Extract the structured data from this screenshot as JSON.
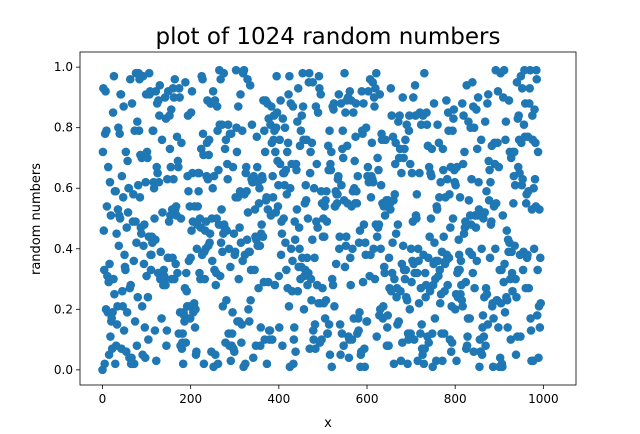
{
  "chart_data": {
    "type": "scatter",
    "title": "plot of 1024 random numbers",
    "xlabel": "x",
    "ylabel": "random numbers",
    "xlim": [
      -51,
      1074
    ],
    "ylim": [
      -0.05,
      1.05
    ],
    "xticks": [
      0,
      200,
      400,
      600,
      800,
      1000
    ],
    "xtick_labels": [
      "0",
      "200",
      "400",
      "600",
      "800",
      "1000"
    ],
    "yticks": [
      0.0,
      0.2,
      0.4,
      0.6,
      0.8,
      1.0
    ],
    "ytick_labels": [
      "0.0",
      "0.2",
      "0.4",
      "0.6",
      "0.8",
      "1.0"
    ],
    "grid": false,
    "legend": "none",
    "marker_color": "#1f77b4",
    "series": [
      {
        "n": 1024,
        "x_start": 0,
        "x_step": 1,
        "y": [
          0.0,
          0.72,
          0.93,
          0.46,
          0.33,
          0.02,
          0.78,
          0.92,
          0.2,
          0.79,
          0.54,
          0.31,
          0.19,
          0.67,
          0.29,
          0.05,
          0.35,
          0.62,
          0.11,
          0.51,
          0.16,
          0.17,
          0.07,
          0.19,
          0.85,
          0.3,
          0.97,
          0.25,
          0.59,
          0.02,
          0.59,
          0.08,
          0.45,
          0.15,
          0.21,
          0.53,
          0.8,
          0.41,
          0.51,
          0.78,
          0.5,
          0.91,
          0.91,
          0.07,
          0.64,
          0.26,
          0.21,
          0.57,
          0.87,
          0.13,
          0.38,
          0.34,
          0.33,
          0.72,
          0.06,
          0.47,
          0.19,
          0.69,
          0.52,
          0.6,
          0.6,
          0.04,
          0.27,
          0.96,
          0.28,
          0.02,
          0.04,
          0.88,
          0.02,
          0.49,
          0.58,
          0.36,
          0.02,
          0.79,
          0.16,
          0.49,
          0.98,
          0.42,
          0.08,
          0.82,
          0.24,
          0.61,
          0.98,
          0.79,
          0.96,
          0.57,
          0.71,
          0.47,
          0.45,
          0.7,
          0.21,
          0.05,
          0.97,
          0.41,
          0.35,
          0.48,
          0.14,
          0.04,
          0.62,
          0.91,
          0.31,
          0.72,
          0.7,
          0.24,
          0.1,
          0.44,
          0.98,
          0.91,
          0.92,
          0.38,
          0.33,
          0.38,
          0.44,
          0.42,
          0.79,
          0.79,
          0.62,
          0.6,
          0.5,
          0.13,
          0.43,
          0.92,
          0.03,
          0.67,
          0.88,
          0.65,
          0.32,
          0.89,
          0.62,
          0.84,
          0.94,
          0.3,
          0.39,
          0.31,
          0.17,
          0.76,
          0.52,
          0.3,
          0.28,
          0.33,
          0.31,
          0.3,
          0.9,
          0.28,
          0.83,
          0.08,
          0.13,
          0.63,
          0.37,
          0.92,
          0.37,
          0.49,
          0.84,
          0.73,
          0.51,
          0.67,
          0.86,
          0.3,
          0.53,
          0.37,
          0.93,
          0.63,
          0.9,
          0.3,
          0.96,
          0.53,
          0.35,
          0.54,
          0.51,
          0.77,
          0.32,
          0.69,
          0.67,
          0.12,
          0.93,
          0.9,
          0.19,
          0.08,
          0.5,
          0.75,
          0.07,
          0.09,
          0.12,
          0.02,
          0.19,
          0.18,
          0.16,
          0.27,
          0.95,
          0.09,
          0.32,
          0.26,
          0.21,
          0.64,
          0.84,
          0.59,
          0.36,
          0.21,
          0.54,
          0.17,
          0.37,
          0.85,
          0.46,
          0.92,
          0.65,
          0.49,
          0.19,
          0.21,
          0.22,
          0.54,
          0.14,
          0.2,
          0.05,
          0.06,
          0.4,
          0.48,
          0.54,
          0.65,
          0.59,
          0.65,
          0.32,
          0.5,
          0.3,
          0.47,
          0.73,
          0.97,
          0.38,
          0.96,
          0.78,
          0.71,
          0.02,
          0.39,
          0.3,
          0.46,
          0.4,
          0.49,
          0.64,
          0.75,
          0.89,
          0.63,
          0.41,
          0.71,
          0.76,
          0.42,
          0.45,
          0.88,
          0.88,
          0.06,
          0.5,
          0.36,
          0.6,
          0.92,
          0.01,
          0.64,
          0.33,
          0.89,
          0.05,
          0.28,
          0.32,
          0.5,
          0.87,
          0.79,
          0.02,
          0.66,
          0.48,
          0.99,
          0.81,
          0.31,
          0.96,
          0.42,
          0.53,
          0.81,
          0.39,
          0.21,
          0.45,
          0.98,
          0.48,
          0.47,
          0.73,
          0.09,
          0.76,
          0.23,
          0.46,
          0.68,
          0.63,
          0.81,
          0.12,
          0.4,
          0.08,
          0.78,
          0.34,
          0.03,
          0.78,
          0.08,
          0.12,
          0.19,
          0.67,
          0.07,
          0.45,
          0.06,
          0.38,
          0.39,
          0.57,
          0.99,
          0.8,
          0.72,
          0.16,
          0.57,
          0.87,
          0.3,
          0.16,
          0.47,
          0.59,
          0.91,
          0.42,
          0.09,
          0.15,
          0.79,
          0.36,
          0.98,
          0.01,
          0.99,
          0.58,
          0.38,
          0.02,
          0.65,
          0.67,
          0.59,
          0.43,
          0.96,
          0.52,
          0.2,
          0.39,
          0.16,
          0.39,
          0.94,
          0.23,
          0.33,
          0.63,
          0.81,
          0.62,
          0.62,
          0.04,
          0.64,
          0.63,
          0.33,
          0.53,
          0.44,
          0.08,
          0.43,
          0.77,
          0.67,
          0.41,
          0.62,
          0.27,
          0.55,
          0.6,
          0.41,
          0.08,
          0.14,
          0.45,
          0.48,
          0.64,
          0.63,
          0.44,
          0.89,
          0.29,
          0.79,
          0.1,
          0.72,
          0.89,
          0.56,
          0.57,
          0.02,
          0.88,
          0.53,
          0.29,
          0.83,
          0.13,
          0.1,
          0.13,
          0.81,
          0.51,
          0.87,
          0.75,
          0.1,
          0.64,
          0.57,
          0.76,
          0.84,
          0.79,
          0.28,
          0.72,
          0.52,
          0.8,
          0.97,
          0.85,
          0.69,
          0.54,
          0.61,
          0.31,
          0.14,
          0.76,
          0.68,
          0.89,
          0.38,
          0.49,
          0.45,
          0.08,
          0.83,
          0.65,
          0.5,
          0.65,
          0.61,
          0.8,
          0.42,
          0.66,
          0.33,
          0.58,
          0.72,
          0.27,
          0.75,
          0.91,
          0.21,
          0.97,
          0.01,
          0.6,
          0.88,
          0.4,
          0.68,
          0.26,
          0.36,
          0.87,
          0.02,
          0.1,
          0.14,
          0.49,
          0.43,
          0.06,
          0.68,
          0.66,
          0.53,
          0.82,
          0.26,
          0.93,
          0.34,
          0.47,
          0.4,
          0.74,
          0.3,
          0.79,
          0.34,
          0.84,
          0.37,
          0.98,
          0.87,
          0.76,
          0.2,
          0.31,
          0.55,
          0.33,
          0.61,
          0.56,
          0.76,
          0.37,
          0.28,
          0.5,
          0.32,
          0.95,
          0.98,
          0.07,
          0.65,
          0.72,
          0.3,
          0.23,
          0.75,
          0.43,
          0.95,
          0.13,
          0.1,
          0.6,
          0.37,
          0.15,
          0.07,
          0.87,
          0.49,
          0.68,
          0.28,
          0.47,
          0.85,
          0.22,
          0.97,
          0.93,
          0.09,
          0.22,
          0.91,
          0.59,
          0.1,
          0.55,
          0.27,
          0.44,
          0.5,
          0.22,
          0.44,
          0.54,
          0.17,
          0.56,
          0.23,
          0.59,
          0.49,
          0.12,
          0.12,
          0.74,
          0.66,
          0.15,
          0.79,
          0.05,
          0.68,
          0.66,
          0.72,
          0.01,
          0.3,
          0.87,
          0.28,
          0.86,
          0.88,
          0.21,
          0.54,
          0.54,
          0.59,
          0.35,
          0.58,
          0.55,
          0.58,
          0.63,
          0.64,
          0.91,
          0.4,
          0.44,
          0.15,
          0.05,
          0.88,
          0.61,
          0.12,
          0.73,
          0.79,
          0.7,
          0.08,
          0.56,
          0.98,
          0.34,
          0.85,
          0.41,
          0.44,
          0.89,
          0.74,
          0.55,
          0.9,
          0.11,
          0.04,
          0.1,
          0.92,
          0.37,
          0.28,
          0.89,
          0.54,
          0.1,
          0.4,
          0.59,
          0.85,
          0.17,
          0.6,
          0.69,
          0.55,
          0.77,
          0.88,
          0.59,
          0.55,
          0.12,
          0.64,
          0.17,
          0.13,
          0.42,
          0.19,
          0.46,
          0.01,
          0.05,
          0.06,
          0.92,
          0.79,
          0.78,
          0.29,
          0.88,
          0.48,
          0.07,
          0.01,
          0.42,
          0.38,
          0.8,
          0.16,
          0.16,
          0.64,
          0.67,
          0.92,
          0.62,
          0.63,
          0.31,
          0.96,
          0.38,
          0.57,
          0.64,
          0.75,
          0.63,
          0.95,
          0.62,
          0.4,
          0.9,
          0.87,
          0.3,
          0.93,
          0.48,
          0.98,
          0.11,
          0.44,
          0.7,
          0.47,
          0.66,
          0.48,
          0.18,
          0.91,
          0.2,
          0.4,
          0.61,
          0.78,
          0.76,
          0.55,
          0.17,
          0.21,
          0.54,
          0.34,
          0.32,
          0.51,
          0.76,
          0.54,
          0.56,
          0.08,
          0.14,
          0.18,
          0.56,
          0.08,
          0.37,
          0.27,
          0.55,
          0.53,
          0.93,
          0.26,
          0.84,
          0.32,
          0.42,
          0.77,
          0.56,
          0.02,
          0.3,
          0.58,
          0.68,
          0.75,
          0.45,
          0.24,
          0.27,
          0.15,
          0.48,
          0.82,
          0.16,
          0.7,
          0.84,
          0.73,
          0.26,
          0.03,
          0.65,
          0.35,
          0.09,
          0.9,
          0.41,
          0.7,
          0.33,
          0.73,
          0.3,
          0.76,
          0.33,
          0.24,
          0.81,
          0.23,
          0.02,
          0.12,
          0.1,
          0.79,
          0.84,
          0.2,
          0.68,
          0.12,
          0.4,
          0.29,
          0.65,
          0.36,
          0.49,
          0.9,
          0.35,
          0.1,
          0.32,
          0.94,
          0.84,
          0.51,
          0.5,
          0.58,
          0.32,
          0.03,
          0.4,
          0.36,
          0.22,
          0.65,
          0.85,
          0.12,
          0.27,
          0.81,
          0.15,
          0.07,
          0.05,
          0.84,
          0.38,
          0.02,
          0.98,
          0.07,
          0.32,
          0.24,
          0.28,
          0.85,
          0.81,
          0.11,
          0.74,
          0.37,
          0.09,
          0.67,
          0.44,
          0.26,
          0.65,
          0.5,
          0.64,
          0.73,
          0.12,
          0.01,
          0.28,
          0.35,
          0.88,
          0.42,
          0.17,
          0.3,
          0.36,
          0.03,
          0.54,
          0.53,
          0.81,
          0.36,
          0.31,
          0.75,
          0.57,
          0.33,
          0.22,
          0.62,
          0.25,
          0.12,
          0.39,
          0.03,
          0.73,
          0.66,
          0.44,
          0.12,
          0.26,
          0.35,
          0.57,
          0.36,
          0.89,
          0.38,
          0.63,
          0.28,
          0.85,
          0.79,
          0.37,
          0.58,
          0.1,
          0.47,
          0.67,
          0.06,
          0.21,
          0.09,
          0.79,
          0.5,
          0.83,
          0.86,
          0.66,
          0.62,
          0.2,
          0.61,
          0.25,
          0.03,
          0.67,
          0.32,
          0.24,
          0.33,
          0.43,
          0.38,
          0.33,
          0.57,
          0.25,
          0.36,
          0.28,
          0.23,
          0.88,
          0.21,
          0.68,
          0.84,
          0.45,
          0.72,
          0.47,
          0.49,
          0.29,
          0.07,
          0.94,
          0.08,
          0.11,
          0.17,
          0.82,
          0.56,
          0.39,
          0.17,
          0.51,
          0.8,
          0.48,
          0.63,
          0.38,
          0.95,
          0.32,
          0.87,
          0.06,
          0.8,
          0.27,
          0.51,
          0.51,
          0.47,
          0.86,
          0.36,
          0.73,
          0.51,
          0.9,
          0.62,
          0.53,
          0.01,
          0.1,
          0.06,
          0.06,
          0.76,
          0.4,
          0.05,
          0.14,
          0.18,
          0.5,
          0.11,
          0.24,
          0.52,
          0.82,
          0.08,
          0.27,
          0.59,
          0.25,
          0.88,
          0.15,
          0.91,
          0.69,
          0.56,
          0.66,
          0.37,
          0.62,
          0.48,
          0.49,
          0.74,
          0.21,
          0.22,
          0.01,
          0.17,
          0.54,
          0.75,
          0.68,
          0.4,
          0.99,
          0.55,
          0.23,
          0.23,
          0.75,
          0.92,
          0.14,
          0.67,
          0.01,
          0.33,
          0.04,
          0.98,
          0.22,
          0.33,
          0.02,
          0.01,
          0.51,
          0.9,
          0.29,
          0.99,
          0.35,
          0.19,
          0.76,
          0.82,
          0.24,
          0.46,
          0.23,
          0.14,
          0.43,
          0.39,
          0.89,
          0.42,
          0.72,
          0.3,
          0.1,
          0.7,
          0.39,
          0.32,
          0.26,
          0.72,
          0.55,
          0.64,
          0.72,
          0.41,
          0.61,
          0.3,
          0.05,
          0.24,
          0.95,
          0.11,
          0.83,
          0.67,
          0.84,
          0.76,
          0.65,
          0.38,
          0.11,
          0.97,
          0.75,
          0.61,
          0.93,
          0.63,
          0.33,
          0.39,
          0.81,
          0.99,
          0.77,
          0.88,
          0.27,
          0.55,
          0.58,
          0.37,
          0.38,
          0.77,
          0.59,
          0.27,
          0.88,
          0.93,
          0.99,
          0.17,
          0.13,
          0.03,
          0.53,
          0.84,
          0.76,
          0.03,
          0.6,
          0.4,
          0.86,
          0.63,
          0.75,
          0.54,
          0.99,
          0.96,
          0.18,
          0.33,
          0.72,
          0.04,
          0.21,
          0.53,
          0.14,
          0.37,
          0.22
        ]
      }
    ]
  }
}
